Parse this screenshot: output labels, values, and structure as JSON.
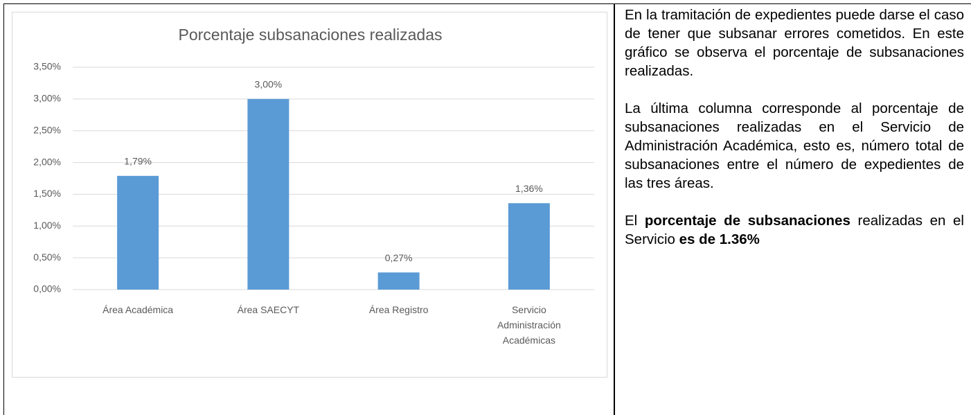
{
  "chart_data": {
    "type": "bar",
    "title": "Porcentaje subsanaciones realizadas",
    "categories": [
      "Área Académica",
      "Área SAECYT",
      "Área Registro",
      "Servicio Administración Académicas"
    ],
    "values": [
      1.79,
      3.0,
      0.27,
      1.36
    ],
    "value_labels": [
      "1,79%",
      "3,00%",
      "0,27%",
      "1,36%"
    ],
    "color": "#5b9bd5",
    "ylim": [
      0,
      3.5
    ],
    "yticks": [
      {
        "value": 0,
        "label": "0,00%"
      },
      {
        "value": 0.5,
        "label": "0,50%"
      },
      {
        "value": 1,
        "label": "1,00%"
      },
      {
        "value": 1.5,
        "label": "1,50%"
      },
      {
        "value": 2,
        "label": "2,00%"
      },
      {
        "value": 2.5,
        "label": "2,50%"
      },
      {
        "value": 3,
        "label": "3,00%"
      },
      {
        "value": 3.5,
        "label": "3,50%"
      }
    ],
    "grid": true
  },
  "text": {
    "paragraphs": [
      "En la tramitación de expedientes puede darse el caso de tener que subsanar errores cometidos. En este gráfico se observa el porcentaje de subsanaciones realizadas.",
      "La última columna corresponde al porcentaje de subsanaciones realizadas en el Servicio de Administración Académica, esto es, número total de subsanaciones entre el número de expedientes de las tres áreas."
    ],
    "conclusion": [
      "El ",
      "porcentaje de subsanaciones",
      " realizadas en el Servicio ",
      "es de 1.36%"
    ]
  }
}
